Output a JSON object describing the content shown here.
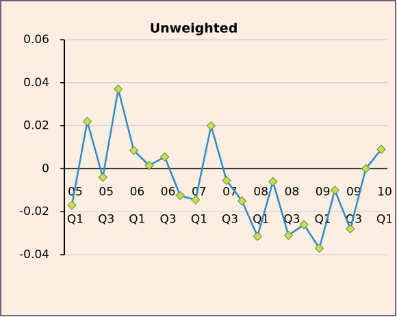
{
  "chart_data": {
    "type": "line",
    "title": "Unweighted",
    "categories": [
      [
        "05",
        "Q1"
      ],
      null,
      [
        "05",
        "Q3"
      ],
      null,
      [
        "06",
        "Q1"
      ],
      null,
      [
        "06",
        "Q3"
      ],
      null,
      [
        "07",
        "Q1"
      ],
      null,
      [
        "07",
        "Q3"
      ],
      null,
      [
        "08",
        "Q1"
      ],
      null,
      [
        "08",
        "Q3"
      ],
      null,
      [
        "09",
        "Q1"
      ],
      null,
      [
        "09",
        "Q3"
      ],
      null,
      [
        "10",
        "Q1"
      ]
    ],
    "series": [
      {
        "name": "Unweighted",
        "color": "#2e88c8",
        "values": [
          -0.017,
          0.022,
          -0.004,
          0.037,
          0.0085,
          0.0015,
          0.0055,
          -0.0125,
          -0.0145,
          0.02,
          -0.0055,
          -0.015,
          -0.0315,
          -0.006,
          -0.031,
          -0.026,
          -0.037,
          -0.01,
          -0.028,
          0.0,
          0.009
        ]
      }
    ],
    "marker_color": "#c8dc5c",
    "ylim": [
      -0.04,
      0.06
    ],
    "yticks": [
      0.06,
      0.04,
      0.02,
      0,
      -0.02,
      -0.04
    ],
    "grid": true
  }
}
